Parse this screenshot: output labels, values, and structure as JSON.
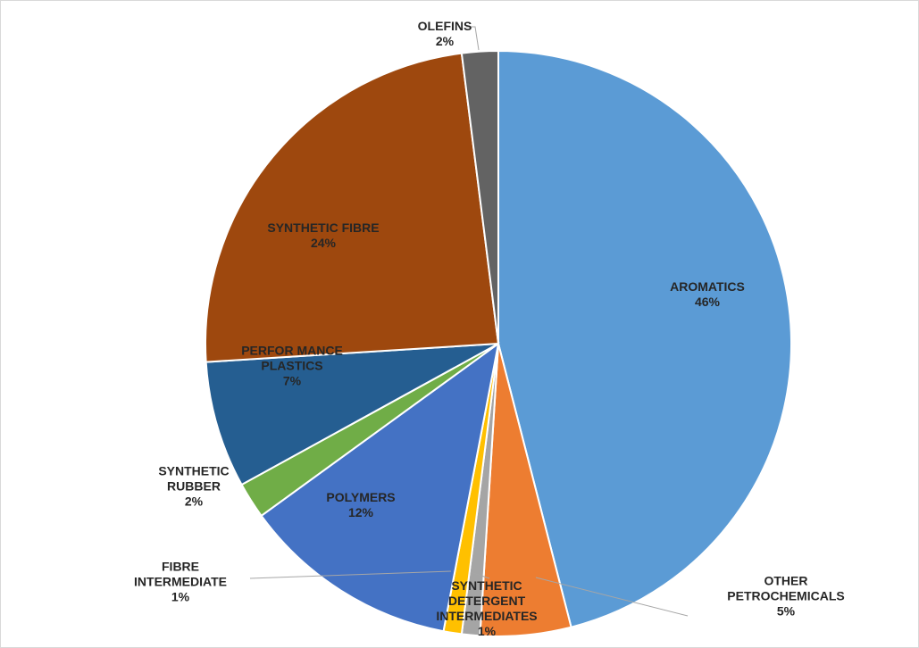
{
  "chart_data": {
    "type": "pie",
    "categories": [
      "AROMATICS",
      "OTHER\nPETROCHEMICALS",
      "SYNTHETIC\nDETERGENT\nINTERMEDIATES",
      "FIBRE\nINTERMEDIATE",
      "POLYMERS",
      "SYNTHETIC\nRUBBER",
      "PERFOR  MANCE\nPLASTICS",
      "SYNTHETIC  FIBRE",
      "OLEFINS"
    ],
    "values": [
      46,
      5,
      1,
      1,
      12,
      2,
      7,
      24,
      2
    ],
    "value_labels": [
      "46%",
      "5%",
      "1%",
      "1%",
      "12%",
      "2%",
      "7%",
      "24%",
      "2%"
    ],
    "colors": [
      "#5b9bd5",
      "#ed7d31",
      "#a5a5a5",
      "#ffc000",
      "#4472c4",
      "#70ad47",
      "#255e91",
      "#9e480e",
      "#636363"
    ]
  }
}
